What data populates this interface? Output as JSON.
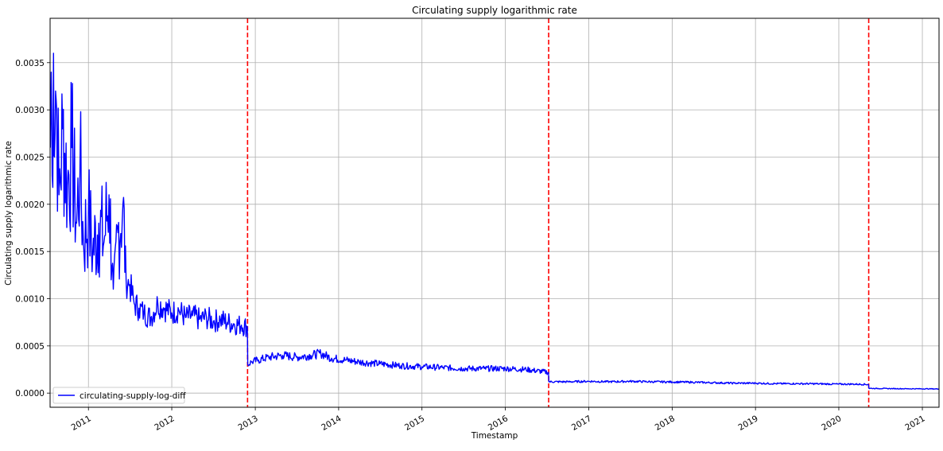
{
  "chart_data": {
    "type": "line",
    "title": "Circulating supply logarithmic rate",
    "xlabel": "Timestamp",
    "ylabel": "Circulating supply logarithmic rate",
    "x_axis_type": "date",
    "xlim": [
      "2010-07-17",
      "2021-03-15"
    ],
    "ylim": [
      -0.00015,
      0.00397
    ],
    "x_ticks": [
      "2011",
      "2012",
      "2013",
      "2014",
      "2015",
      "2016",
      "2017",
      "2018",
      "2019",
      "2020",
      "2021"
    ],
    "y_ticks": [
      "0.0000",
      "0.0005",
      "0.0010",
      "0.0015",
      "0.0020",
      "0.0025",
      "0.0030",
      "0.0035"
    ],
    "y_tick_values": [
      0,
      0.0005,
      0.001,
      0.0015,
      0.002,
      0.0025,
      0.003,
      0.0035
    ],
    "grid": true,
    "legend_position": "lower-left",
    "series": [
      {
        "name": "circulating-supply-log-diff",
        "color": "#0000ff",
        "x": [
          "2010-07-18",
          "2010-07-22",
          "2010-07-26",
          "2010-08-01",
          "2010-08-05",
          "2010-08-10",
          "2010-08-15",
          "2010-08-25",
          "2010-09-10",
          "2010-10-01",
          "2010-10-20",
          "2010-11-10",
          "2010-11-25",
          "2010-12-10",
          "2011-01-01",
          "2011-01-20",
          "2011-02-15",
          "2011-03-10",
          "2011-04-01",
          "2011-04-20",
          "2011-05-10",
          "2011-06-01",
          "2011-06-15",
          "2011-07-01",
          "2011-07-20",
          "2011-08-10",
          "2011-09-01",
          "2011-10-01",
          "2011-11-01",
          "2011-12-01",
          "2012-01-01",
          "2012-02-01",
          "2012-03-01",
          "2012-04-01",
          "2012-05-01",
          "2012-06-01",
          "2012-07-01",
          "2012-08-01",
          "2012-09-01",
          "2012-10-01",
          "2012-11-01",
          "2012-11-27",
          "2012-11-29",
          "2012-12-15",
          "2013-01-15",
          "2013-03-01",
          "2013-05-01",
          "2013-07-01",
          "2013-09-01",
          "2013-10-15",
          "2013-12-01",
          "2014-02-01",
          "2014-04-01",
          "2014-07-01",
          "2014-10-01",
          "2015-01-01",
          "2015-04-01",
          "2015-07-01",
          "2015-10-01",
          "2016-01-01",
          "2016-04-01",
          "2016-07-08",
          "2016-07-10",
          "2016-10-01",
          "2017-01-01",
          "2017-04-01",
          "2017-07-01",
          "2017-10-01",
          "2018-01-01",
          "2018-04-01",
          "2018-07-01",
          "2018-10-01",
          "2019-01-01",
          "2019-04-01",
          "2019-07-01",
          "2019-10-01",
          "2020-01-01",
          "2020-03-01",
          "2020-05-10",
          "2020-05-12",
          "2020-08-01",
          "2020-11-01",
          "2021-02-01",
          "2021-03-14"
        ],
        "values": [
          0.0026,
          0.0034,
          0.0023,
          0.0036,
          0.0025,
          0.0032,
          0.003,
          0.0021,
          0.0028,
          0.0022,
          0.0026,
          0.0018,
          0.0024,
          0.0016,
          0.0019,
          0.0015,
          0.0018,
          0.0016,
          0.0021,
          0.0011,
          0.0017,
          0.002,
          0.0012,
          0.00115,
          0.00095,
          0.0009,
          0.00085,
          0.0008,
          0.00095,
          0.0009,
          0.00085,
          0.00088,
          0.0008,
          0.00082,
          0.00078,
          0.0008,
          0.00076,
          0.00078,
          0.00075,
          0.00073,
          0.00072,
          0.0007,
          0.0003,
          0.00033,
          0.00035,
          0.00038,
          0.0004,
          0.00038,
          0.0004,
          0.00042,
          0.00037,
          0.00035,
          0.00033,
          0.00031,
          0.00029,
          0.00028,
          0.00027,
          0.00026,
          0.00026,
          0.00026,
          0.00025,
          0.00022,
          0.00012,
          0.00012,
          0.000125,
          0.00012,
          0.000125,
          0.00012,
          0.000118,
          0.000115,
          0.00011,
          0.000105,
          0.000105,
          0.0001,
          0.0001,
          9.8e-05,
          9.5e-05,
          9.5e-05,
          9.2e-05,
          5e-05,
          4.8e-05,
          4.6e-05,
          4.5e-05,
          4.4e-05
        ]
      }
    ],
    "vertical_lines": {
      "color": "#ff0000",
      "style": "dashed",
      "dates": [
        "2012-11-28",
        "2016-07-09",
        "2020-05-11"
      ]
    }
  }
}
